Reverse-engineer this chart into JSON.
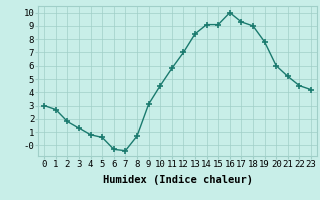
{
  "x": [
    0,
    1,
    2,
    3,
    4,
    5,
    6,
    7,
    8,
    9,
    10,
    11,
    12,
    13,
    14,
    15,
    16,
    17,
    18,
    19,
    20,
    21,
    22,
    23
  ],
  "y": [
    3.0,
    2.7,
    1.8,
    1.3,
    0.8,
    0.6,
    -0.3,
    -0.4,
    0.7,
    3.1,
    4.5,
    5.8,
    7.0,
    8.4,
    9.1,
    9.1,
    10.0,
    9.3,
    9.0,
    7.8,
    6.0,
    5.2,
    4.5,
    4.2
  ],
  "line_color": "#1a7a6e",
  "marker": "+",
  "marker_size": 4,
  "marker_lw": 1.2,
  "bg_color": "#c8eee8",
  "grid_color": "#a0cfc8",
  "xlabel": "Humidex (Indice chaleur)",
  "xlim": [
    -0.5,
    23.5
  ],
  "ylim": [
    -0.8,
    10.5
  ],
  "yticks": [
    0,
    1,
    2,
    3,
    4,
    5,
    6,
    7,
    8,
    9,
    10
  ],
  "ytick_labels": [
    "-0",
    "1",
    "2",
    "3",
    "4",
    "5",
    "6",
    "7",
    "8",
    "9",
    "10"
  ],
  "xticks": [
    0,
    1,
    2,
    3,
    4,
    5,
    6,
    7,
    8,
    9,
    10,
    11,
    12,
    13,
    14,
    15,
    16,
    17,
    18,
    19,
    20,
    21,
    22,
    23
  ],
  "xtick_labels": [
    "0",
    "1",
    "2",
    "3",
    "4",
    "5",
    "6",
    "7",
    "8",
    "9",
    "10",
    "11",
    "12",
    "13",
    "14",
    "15",
    "16",
    "17",
    "18",
    "19",
    "20",
    "21",
    "22",
    "23"
  ],
  "tick_fontsize": 6.5,
  "xlabel_fontsize": 7.5,
  "linewidth": 1.0
}
